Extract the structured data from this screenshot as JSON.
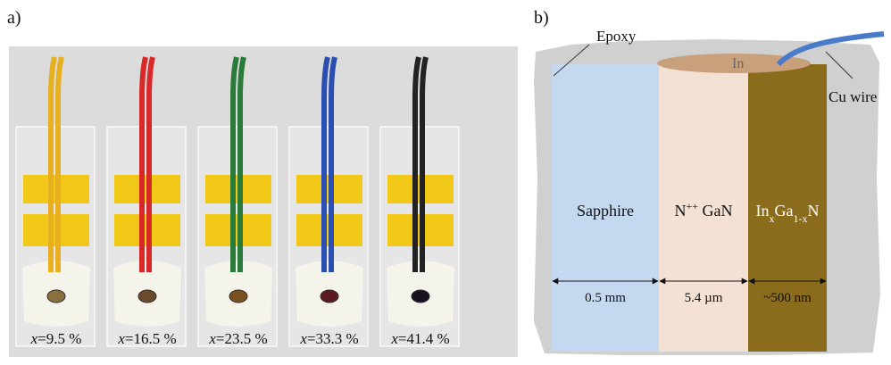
{
  "panel_a": {
    "label": "a)",
    "samples": [
      {
        "var": "x",
        "value": "=9.5 %"
      },
      {
        "var": "x",
        "value": "=16.5 %"
      },
      {
        "var": "x",
        "value": "=23.5 %"
      },
      {
        "var": "x",
        "value": "=33.3 %"
      },
      {
        "var": "x",
        "value": "=41.4 %"
      }
    ]
  },
  "panel_b": {
    "label": "b)",
    "epoxy": "Epoxy",
    "indium": "In",
    "wire": "Cu wire",
    "layers": [
      {
        "name": [
          "Sapphire"
        ],
        "thickness": "0.5 mm"
      },
      {
        "name": [
          "N",
          "++",
          " GaN"
        ],
        "thickness": "5.4 µm"
      },
      {
        "name": [
          "In",
          "x",
          "Ga",
          "1-x",
          "N"
        ],
        "thickness": "~500 nm"
      }
    ]
  }
}
